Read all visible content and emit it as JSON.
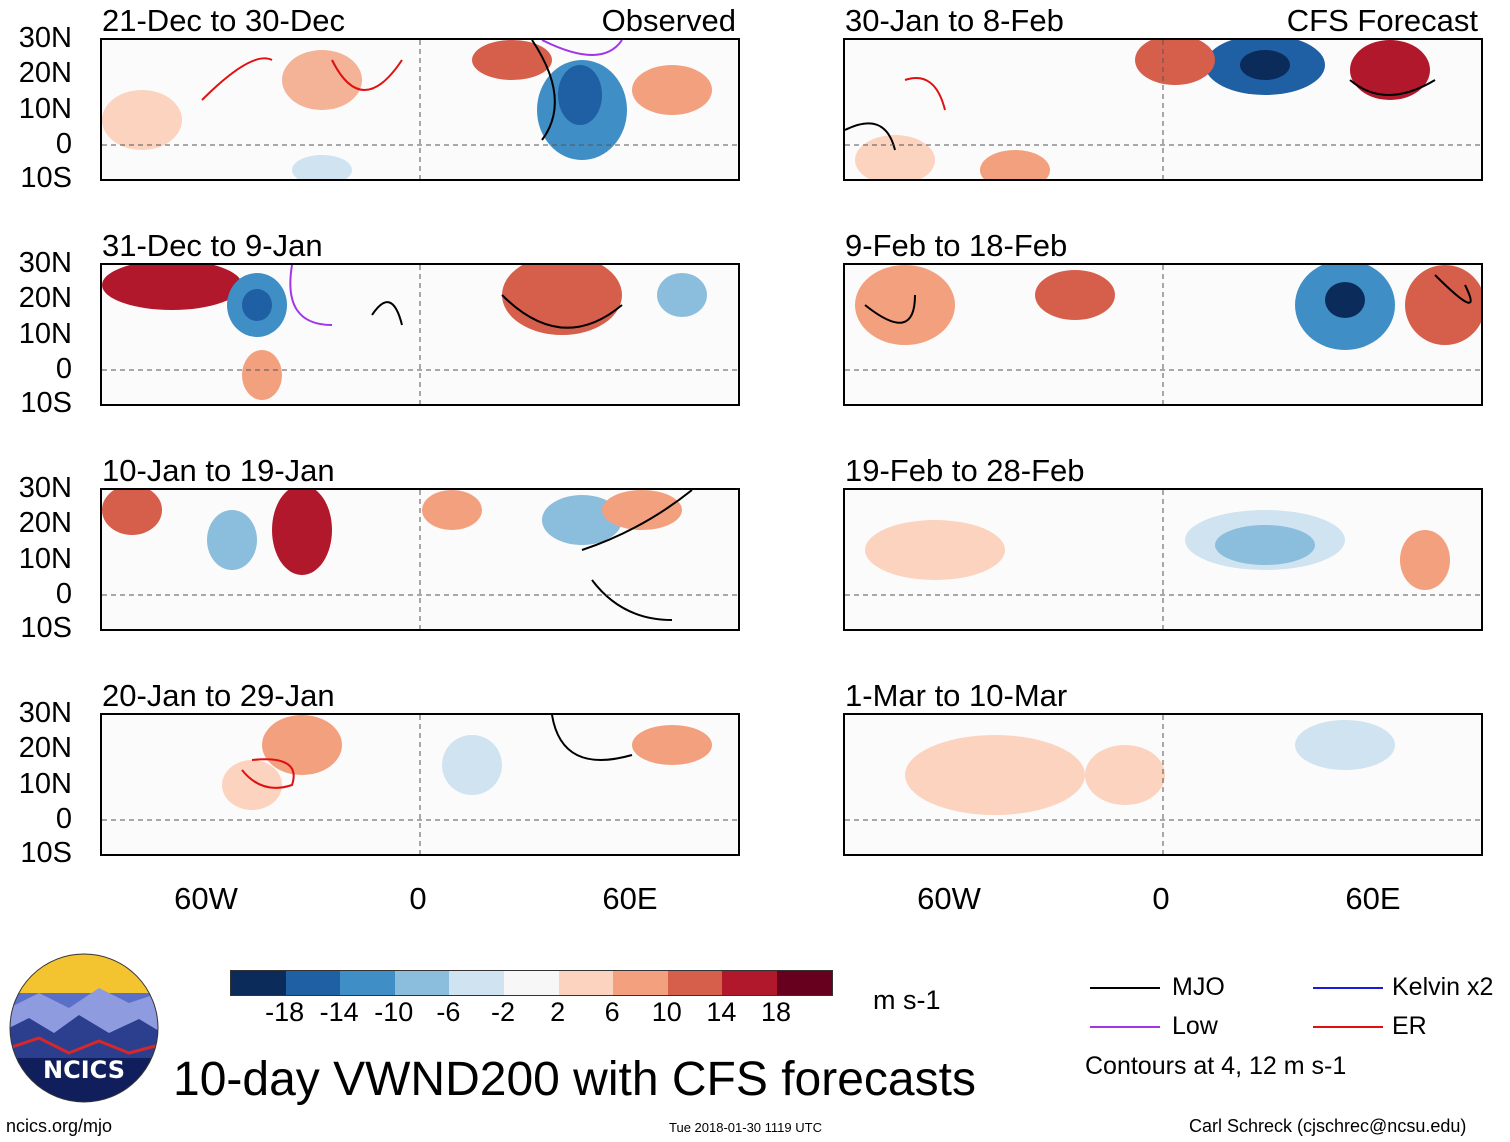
{
  "panels": [
    {
      "title": "21-Dec to 30-Dec",
      "tag": "Observed"
    },
    {
      "title": "31-Dec to 9-Jan",
      "tag": ""
    },
    {
      "title": "10-Jan to 19-Jan",
      "tag": ""
    },
    {
      "title": "20-Jan to 29-Jan",
      "tag": ""
    },
    {
      "title": "30-Jan to 8-Feb",
      "tag": "CFS Forecast"
    },
    {
      "title": "9-Feb to 18-Feb",
      "tag": ""
    },
    {
      "title": "19-Feb to 28-Feb",
      "tag": ""
    },
    {
      "title": "1-Mar to 10-Mar",
      "tag": ""
    }
  ],
  "lat_labels": [
    "30N",
    "20N",
    "10N",
    "0",
    "10S"
  ],
  "lon_labels": [
    "60W",
    "0",
    "60E"
  ],
  "colorbar": {
    "colors": [
      "#0b2c5a",
      "#1f5fa3",
      "#3f8ec6",
      "#8bbddd",
      "#cfe3f0",
      "#f7f7f7",
      "#fbd3bf",
      "#f2a07e",
      "#d65f4c",
      "#b2182b",
      "#67001f"
    ],
    "labels": [
      "-18",
      "-14",
      "-10",
      "-6",
      "-2",
      "2",
      "6",
      "10",
      "14",
      "18"
    ],
    "units": "m s-1"
  },
  "legend": {
    "items": [
      {
        "label": "MJO",
        "color": "#000000"
      },
      {
        "label": "Kelvin x2",
        "color": "#1a1adc"
      },
      {
        "label": "Low",
        "color": "#a335e8"
      },
      {
        "label": "ER",
        "color": "#e01010"
      }
    ],
    "contours_note": "Contours at 4, 12 m s-1"
  },
  "logo_text": "NCICS",
  "main_title": "10-day VWND200 with CFS forecasts",
  "footer": {
    "left": "ncics.org/mjo",
    "center": "Tue 2018-01-30 1119 UTC",
    "right": "Carl Schreck (cjschrec@ncsu.edu)"
  }
}
